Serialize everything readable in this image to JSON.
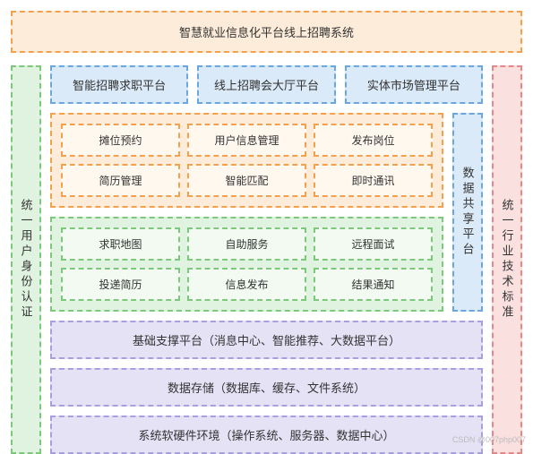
{
  "colors": {
    "orange_border": "#f5a04d",
    "orange_fill": "#fdecd9",
    "blue_border": "#6aa6e0",
    "blue_fill": "#dbeaf8",
    "green_border": "#7cc97c",
    "green_fill": "#e0f3e0",
    "purple_border": "#a79fe0",
    "purple_fill": "#e5e2f6",
    "red_border": "#e88787",
    "red_fill": "#fbe0e0"
  },
  "header": {
    "title": "智慧就业信息化平台线上招聘系统"
  },
  "left_side": {
    "label": "统一用户身份认证"
  },
  "right_side": {
    "label": "统一行业技术标准"
  },
  "platforms": [
    {
      "label": "智能招聘求职平台"
    },
    {
      "label": "线上招聘会大厅平台"
    },
    {
      "label": "实体市场管理平台"
    }
  ],
  "group_orange": {
    "cells": [
      "摊位预约",
      "用户信息管理",
      "发布岗位",
      "简历管理",
      "智能匹配",
      "即时通讯"
    ]
  },
  "group_green": {
    "cells": [
      "求职地图",
      "自助服务",
      "远程面试",
      "投递简历",
      "信息发布",
      "结果通知"
    ]
  },
  "share": {
    "label": "数据共享平台"
  },
  "bottom_bars": [
    {
      "label": "基础支撑平台（消息中心、智能推荐、大数据平台）"
    },
    {
      "label": "数据存储（数据库、缓存、文件系统）"
    },
    {
      "label": "系统软硬件环境（操作系统、服务器、数据中心）"
    }
  ],
  "watermark": "CSDN @007php007"
}
